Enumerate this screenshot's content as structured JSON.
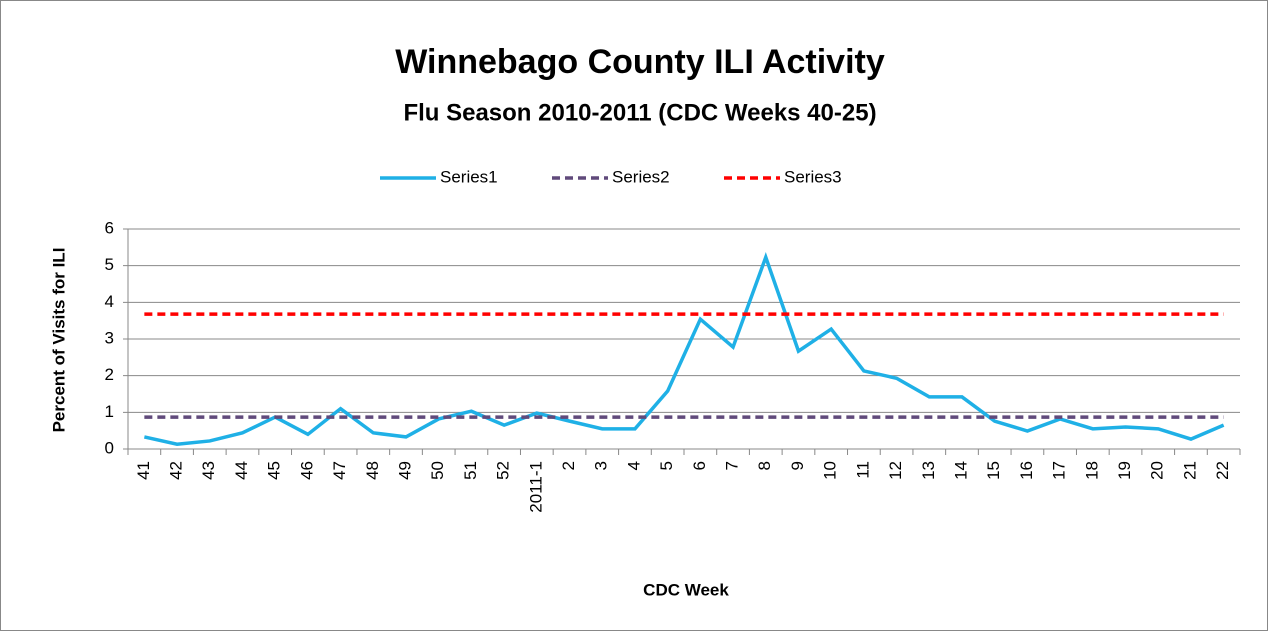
{
  "chart_data": {
    "type": "line",
    "title": "Winnebago County ILI Activity",
    "subtitle": "Flu Season 2010-2011 (CDC Weeks 40-25)",
    "x_label": "CDC Week",
    "y_label": "Percent of Visits for ILI",
    "categories": [
      "41",
      "42",
      "43",
      "44",
      "45",
      "46",
      "47",
      "48",
      "49",
      "50",
      "51",
      "52",
      "2011-1",
      "2",
      "3",
      "4",
      "5",
      "6",
      "7",
      "8",
      "9",
      "10",
      "11",
      "12",
      "13",
      "14",
      "15",
      "16",
      "17",
      "18",
      "19",
      "20",
      "21",
      "22"
    ],
    "series": [
      {
        "name": "Series1",
        "color": "#1fb0e6",
        "dash": false,
        "values": [
          0.33,
          0.13,
          0.22,
          0.44,
          0.87,
          0.4,
          1.1,
          0.44,
          0.33,
          0.82,
          1.03,
          0.65,
          0.98,
          0.76,
          0.55,
          0.55,
          1.58,
          3.54,
          2.78,
          5.23,
          2.67,
          3.27,
          2.13,
          1.93,
          1.42,
          1.42,
          0.76,
          0.49,
          0.82,
          0.55,
          0.6,
          0.55,
          0.27,
          0.65
        ]
      },
      {
        "name": "Series2",
        "color": "#604a7b",
        "dash": true,
        "values": [
          0.87,
          0.87,
          0.87,
          0.87,
          0.87,
          0.87,
          0.87,
          0.87,
          0.87,
          0.87,
          0.87,
          0.87,
          0.87,
          0.87,
          0.87,
          0.87,
          0.87,
          0.87,
          0.87,
          0.87,
          0.87,
          0.87,
          0.87,
          0.87,
          0.87,
          0.87,
          0.87,
          0.87,
          0.87,
          0.87,
          0.87,
          0.87,
          0.87,
          0.87
        ]
      },
      {
        "name": "Series3",
        "color": "#ff0000",
        "dash": true,
        "values": [
          3.68,
          3.68,
          3.68,
          3.68,
          3.68,
          3.68,
          3.68,
          3.68,
          3.68,
          3.68,
          3.68,
          3.68,
          3.68,
          3.68,
          3.68,
          3.68,
          3.68,
          3.68,
          3.68,
          3.68,
          3.68,
          3.68,
          3.68,
          3.68,
          3.68,
          3.68,
          3.68,
          3.68,
          3.68,
          3.68,
          3.68,
          3.68,
          3.68,
          3.68
        ]
      }
    ],
    "ylim": [
      0,
      6
    ],
    "yticks": [
      0,
      1,
      2,
      3,
      4,
      5,
      6
    ],
    "grid": true,
    "legend": "top"
  }
}
